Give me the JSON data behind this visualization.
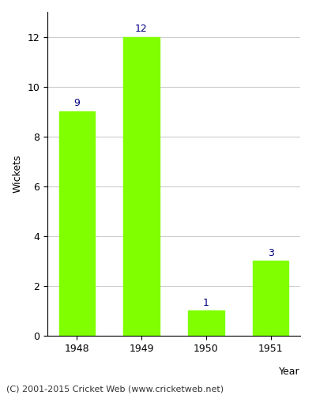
{
  "years": [
    "1948",
    "1949",
    "1950",
    "1951"
  ],
  "values": [
    9,
    12,
    1,
    3
  ],
  "bar_color": "#80ff00",
  "bar_edgecolor": "#80ff00",
  "title": "",
  "xlabel": "Year",
  "ylabel": "Wickets",
  "ylim": [
    0,
    13.0
  ],
  "yticks": [
    0,
    2,
    4,
    6,
    8,
    10,
    12
  ],
  "label_color": "#000080",
  "label_fontsize": 9,
  "axis_fontsize": 9,
  "tick_fontsize": 9,
  "grid_color": "#cccccc",
  "background_color": "#ffffff",
  "footer_text": "(C) 2001-2015 Cricket Web (www.cricketweb.net)",
  "footer_fontsize": 8,
  "footer_color": "#333333"
}
